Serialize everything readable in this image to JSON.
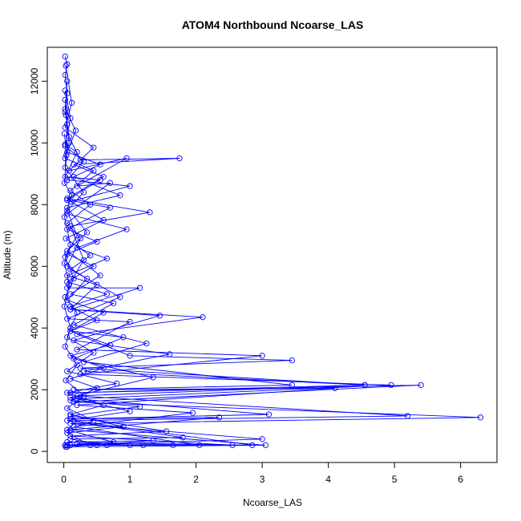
{
  "chart_data": {
    "type": "line",
    "title": "ATOM4 Northbound Ncoarse_LAS",
    "xlabel": "Ncoarse_LAS",
    "ylabel": "Altitude (m)",
    "xlim": [
      -0.25,
      6.55
    ],
    "ylim": [
      -360,
      13100
    ],
    "x_ticks": [
      0,
      1,
      2,
      3,
      4,
      5,
      6
    ],
    "y_ticks": [
      0,
      2000,
      4000,
      6000,
      8000,
      10000,
      12000
    ],
    "color": "#0000ff",
    "series": [
      {
        "values": [
          {
            "x": 0.02,
            "y": 12800
          },
          {
            "x": 0.05,
            "y": 12550
          },
          {
            "x": 0.02,
            "y": 12200
          },
          {
            "x": 0.05,
            "y": 11600
          },
          {
            "x": 0.03,
            "y": 10900
          },
          {
            "x": 0.08,
            "y": 10200
          },
          {
            "x": 0.25,
            "y": 9450
          },
          {
            "x": 1.75,
            "y": 9500
          },
          {
            "x": 0.15,
            "y": 9300
          },
          {
            "x": 0.6,
            "y": 8900
          },
          {
            "x": 0.05,
            "y": 8200
          },
          {
            "x": 1.3,
            "y": 7750
          },
          {
            "x": 0.1,
            "y": 7300
          },
          {
            "x": 0.3,
            "y": 6200
          },
          {
            "x": 0.05,
            "y": 5300
          },
          {
            "x": 1.15,
            "y": 5300
          },
          {
            "x": 0.1,
            "y": 4600
          },
          {
            "x": 2.1,
            "y": 4350
          },
          {
            "x": 0.2,
            "y": 3800
          },
          {
            "x": 1.0,
            "y": 3100
          },
          {
            "x": 3.45,
            "y": 2950
          },
          {
            "x": 0.25,
            "y": 2700
          },
          {
            "x": 4.55,
            "y": 2150
          },
          {
            "x": 0.1,
            "y": 1900
          },
          {
            "x": 5.4,
            "y": 2150
          },
          {
            "x": 0.15,
            "y": 1600
          },
          {
            "x": 6.3,
            "y": 1100
          },
          {
            "x": 0.1,
            "y": 900
          },
          {
            "x": 3.0,
            "y": 400
          },
          {
            "x": 0.05,
            "y": 200
          },
          {
            "x": 0.5,
            "y": 200
          },
          {
            "x": 1.2,
            "y": 200
          }
        ]
      },
      {
        "values": [
          {
            "x": 0.03,
            "y": 12500
          },
          {
            "x": 0.12,
            "y": 11300
          },
          {
            "x": 0.02,
            "y": 10500
          },
          {
            "x": 0.45,
            "y": 9850
          },
          {
            "x": 0.08,
            "y": 9100
          },
          {
            "x": 0.95,
            "y": 9500
          },
          {
            "x": 0.2,
            "y": 8600
          },
          {
            "x": 0.7,
            "y": 8700
          },
          {
            "x": 0.05,
            "y": 7700
          },
          {
            "x": 0.95,
            "y": 7200
          },
          {
            "x": 0.2,
            "y": 6600
          },
          {
            "x": 0.65,
            "y": 6250
          },
          {
            "x": 0.05,
            "y": 5700
          },
          {
            "x": 0.5,
            "y": 5400
          },
          {
            "x": 0.1,
            "y": 4600
          },
          {
            "x": 1.45,
            "y": 4400
          },
          {
            "x": 0.15,
            "y": 3600
          },
          {
            "x": 1.6,
            "y": 3150
          },
          {
            "x": 0.3,
            "y": 2600
          },
          {
            "x": 4.55,
            "y": 2150
          },
          {
            "x": 0.2,
            "y": 1800
          },
          {
            "x": 5.2,
            "y": 1150
          },
          {
            "x": 0.15,
            "y": 1000
          },
          {
            "x": 2.85,
            "y": 200
          },
          {
            "x": 0.05,
            "y": 300
          },
          {
            "x": 1.35,
            "y": 350
          },
          {
            "x": 0.03,
            "y": 150
          }
        ]
      },
      {
        "values": [
          {
            "x": 0.02,
            "y": 11700
          },
          {
            "x": 0.1,
            "y": 10800
          },
          {
            "x": 0.02,
            "y": 9900
          },
          {
            "x": 0.3,
            "y": 9400
          },
          {
            "x": 0.05,
            "y": 8800
          },
          {
            "x": 1.0,
            "y": 8600
          },
          {
            "x": 0.1,
            "y": 8100
          },
          {
            "x": 0.6,
            "y": 7500
          },
          {
            "x": 0.03,
            "y": 6900
          },
          {
            "x": 0.4,
            "y": 6350
          },
          {
            "x": 0.1,
            "y": 5900
          },
          {
            "x": 0.85,
            "y": 5000
          },
          {
            "x": 0.05,
            "y": 4300
          },
          {
            "x": 1.0,
            "y": 4200
          },
          {
            "x": 0.2,
            "y": 3300
          },
          {
            "x": 3.0,
            "y": 3100
          },
          {
            "x": 0.25,
            "y": 2500
          },
          {
            "x": 4.95,
            "y": 2150
          },
          {
            "x": 0.2,
            "y": 1700
          },
          {
            "x": 3.1,
            "y": 1200
          },
          {
            "x": 0.1,
            "y": 1050
          },
          {
            "x": 2.35,
            "y": 1100
          },
          {
            "x": 0.1,
            "y": 700
          },
          {
            "x": 3.05,
            "y": 200
          },
          {
            "x": 0.05,
            "y": 150
          }
        ]
      },
      {
        "values": [
          {
            "x": 0.05,
            "y": 12000
          },
          {
            "x": 0.02,
            "y": 11100
          },
          {
            "x": 0.18,
            "y": 10400
          },
          {
            "x": 0.05,
            "y": 9700
          },
          {
            "x": 0.55,
            "y": 9300
          },
          {
            "x": 0.15,
            "y": 8900
          },
          {
            "x": 0.85,
            "y": 8300
          },
          {
            "x": 0.05,
            "y": 7900
          },
          {
            "x": 0.35,
            "y": 7100
          },
          {
            "x": 0.05,
            "y": 6500
          },
          {
            "x": 0.55,
            "y": 5700
          },
          {
            "x": 0.1,
            "y": 5100
          },
          {
            "x": 0.75,
            "y": 4800
          },
          {
            "x": 0.15,
            "y": 4100
          },
          {
            "x": 1.25,
            "y": 3500
          },
          {
            "x": 0.3,
            "y": 2900
          },
          {
            "x": 3.45,
            "y": 2150
          },
          {
            "x": 0.15,
            "y": 2000
          },
          {
            "x": 4.1,
            "y": 2050
          },
          {
            "x": 0.2,
            "y": 1500
          },
          {
            "x": 1.95,
            "y": 1250
          },
          {
            "x": 0.15,
            "y": 800
          },
          {
            "x": 2.05,
            "y": 200
          },
          {
            "x": 0.1,
            "y": 200
          },
          {
            "x": 1.65,
            "y": 200
          }
        ]
      },
      {
        "values": [
          {
            "x": 0.02,
            "y": 11400
          },
          {
            "x": 0.08,
            "y": 10000
          },
          {
            "x": 0.02,
            "y": 9500
          },
          {
            "x": 0.45,
            "y": 9100
          },
          {
            "x": 0.1,
            "y": 8450
          },
          {
            "x": 0.4,
            "y": 8000
          },
          {
            "x": 0.05,
            "y": 7400
          },
          {
            "x": 0.25,
            "y": 6900
          },
          {
            "x": 0.05,
            "y": 6000
          },
          {
            "x": 0.35,
            "y": 5600
          },
          {
            "x": 0.05,
            "y": 4900
          },
          {
            "x": 0.6,
            "y": 4500
          },
          {
            "x": 0.1,
            "y": 3900
          },
          {
            "x": 0.9,
            "y": 3700
          },
          {
            "x": 0.15,
            "y": 3000
          },
          {
            "x": 1.35,
            "y": 2400
          },
          {
            "x": 0.1,
            "y": 1750
          },
          {
            "x": 1.0,
            "y": 1300
          },
          {
            "x": 0.05,
            "y": 1000
          },
          {
            "x": 1.8,
            "y": 450
          },
          {
            "x": 0.1,
            "y": 400
          },
          {
            "x": 0.65,
            "y": 200
          },
          {
            "x": 0.05,
            "y": 200
          }
        ]
      },
      {
        "values": [
          {
            "x": 0.02,
            "y": 11000
          },
          {
            "x": 0.05,
            "y": 10600
          },
          {
            "x": 0.02,
            "y": 9200
          },
          {
            "x": 0.3,
            "y": 8400
          },
          {
            "x": 0.05,
            "y": 7800
          },
          {
            "x": 0.2,
            "y": 7000
          },
          {
            "x": 0.02,
            "y": 6300
          },
          {
            "x": 0.15,
            "y": 5600
          },
          {
            "x": 0.02,
            "y": 5000
          },
          {
            "x": 0.2,
            "y": 4500
          },
          {
            "x": 0.05,
            "y": 3700
          },
          {
            "x": 0.45,
            "y": 3200
          },
          {
            "x": 0.05,
            "y": 2600
          },
          {
            "x": 0.8,
            "y": 2200
          },
          {
            "x": 0.05,
            "y": 1900
          },
          {
            "x": 0.6,
            "y": 1500
          },
          {
            "x": 0.1,
            "y": 1200
          },
          {
            "x": 0.9,
            "y": 800
          },
          {
            "x": 0.05,
            "y": 600
          },
          {
            "x": 0.4,
            "y": 200
          },
          {
            "x": 0.02,
            "y": 200
          }
        ]
      },
      {
        "values": [
          {
            "x": 0.01,
            "y": 10300
          },
          {
            "x": 0.04,
            "y": 9600
          },
          {
            "x": 0.01,
            "y": 8700
          },
          {
            "x": 0.12,
            "y": 8300
          },
          {
            "x": 0.01,
            "y": 7600
          },
          {
            "x": 0.1,
            "y": 6700
          },
          {
            "x": 0.01,
            "y": 6100
          },
          {
            "x": 0.08,
            "y": 5400
          },
          {
            "x": 0.01,
            "y": 4700
          },
          {
            "x": 0.1,
            "y": 4000
          },
          {
            "x": 0.02,
            "y": 3400
          },
          {
            "x": 0.2,
            "y": 2800
          },
          {
            "x": 0.03,
            "y": 2300
          },
          {
            "x": 0.3,
            "y": 1800
          },
          {
            "x": 0.05,
            "y": 1400
          },
          {
            "x": 0.45,
            "y": 1000
          },
          {
            "x": 0.05,
            "y": 700
          },
          {
            "x": 0.75,
            "y": 300
          },
          {
            "x": 0.02,
            "y": 200
          }
        ]
      },
      {
        "values": [
          {
            "x": 0.02,
            "y": 9950
          },
          {
            "x": 0.2,
            "y": 9700
          },
          {
            "x": 0.02,
            "y": 8900
          },
          {
            "x": 0.55,
            "y": 8800
          },
          {
            "x": 0.05,
            "y": 8150
          },
          {
            "x": 0.7,
            "y": 7900
          },
          {
            "x": 0.05,
            "y": 7200
          },
          {
            "x": 0.5,
            "y": 6800
          },
          {
            "x": 0.05,
            "y": 6400
          },
          {
            "x": 0.45,
            "y": 6000
          },
          {
            "x": 0.05,
            "y": 5500
          },
          {
            "x": 0.65,
            "y": 5100
          },
          {
            "x": 0.1,
            "y": 4700
          },
          {
            "x": 0.5,
            "y": 4250
          },
          {
            "x": 0.1,
            "y": 3900
          },
          {
            "x": 0.7,
            "y": 3450
          },
          {
            "x": 0.1,
            "y": 3100
          },
          {
            "x": 0.6,
            "y": 2700
          },
          {
            "x": 0.1,
            "y": 2350
          },
          {
            "x": 0.5,
            "y": 2050
          },
          {
            "x": 0.1,
            "y": 1650
          },
          {
            "x": 1.15,
            "y": 1450
          },
          {
            "x": 0.1,
            "y": 1150
          },
          {
            "x": 1.55,
            "y": 650
          },
          {
            "x": 0.1,
            "y": 500
          },
          {
            "x": 2.55,
            "y": 200
          },
          {
            "x": 0.2,
            "y": 250
          },
          {
            "x": 1.0,
            "y": 200
          }
        ]
      }
    ]
  }
}
